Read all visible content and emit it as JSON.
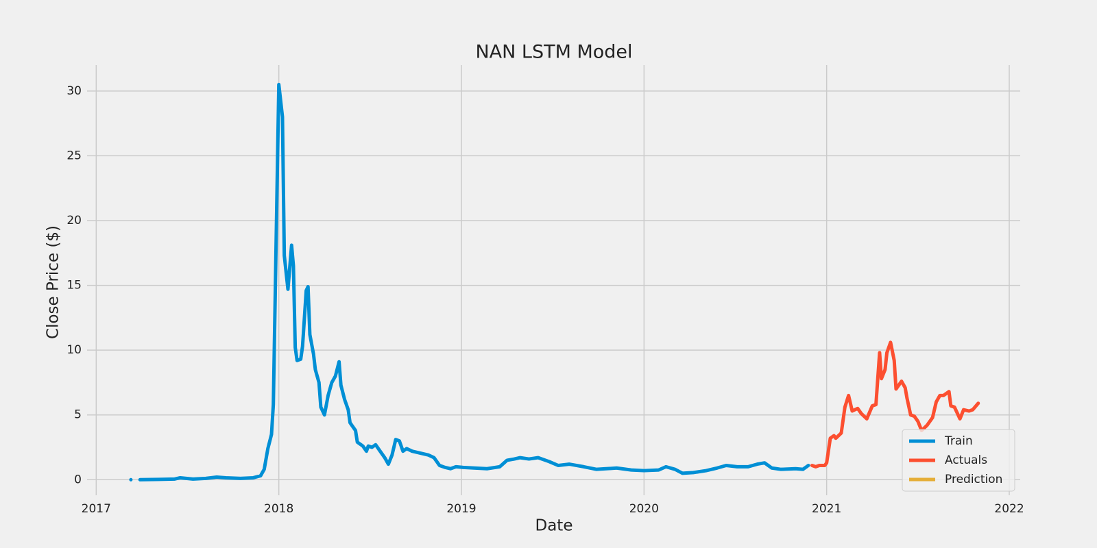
{
  "chart_data": {
    "type": "line",
    "title": "NAN LSTM Model",
    "x_label": "Date",
    "y_label": "Close Price ($)",
    "xlim": [
      2016.95,
      2022.06
    ],
    "xticks": [
      2017,
      2018,
      2019,
      2020,
      2021,
      2022
    ],
    "ylim": [
      -1.2,
      32
    ],
    "yticks": [
      0,
      5,
      10,
      15,
      20,
      25,
      30
    ],
    "grid": true,
    "legend": "lower right",
    "series": [
      {
        "name": "Train",
        "color": "#008fd5",
        "x": [
          2017.19,
          null,
          2017.24,
          2017.34,
          2017.43,
          2017.46,
          2017.53,
          2017.6,
          2017.66,
          2017.71,
          2017.79,
          2017.86,
          2017.9,
          2017.92,
          2017.94,
          2017.96,
          2017.97,
          2017.98,
          2018.0,
          2018.02,
          2018.03,
          2018.05,
          2018.07,
          2018.08,
          2018.09,
          2018.1,
          2018.12,
          2018.13,
          2018.15,
          2018.16,
          2018.17,
          2018.19,
          2018.2,
          2018.22,
          2018.23,
          2018.25,
          2018.27,
          2018.29,
          2018.31,
          2018.33,
          2018.34,
          2018.36,
          2018.38,
          2018.39,
          2018.41,
          2018.42,
          2018.43,
          2018.46,
          2018.48,
          2018.49,
          2018.51,
          2018.53,
          2018.55,
          2018.58,
          2018.6,
          2018.62,
          2018.64,
          2018.66,
          2018.68,
          2018.7,
          2018.73,
          2018.76,
          2018.79,
          2018.82,
          2018.85,
          2018.88,
          2018.91,
          2018.94,
          2018.97,
          2019.01,
          2019.07,
          2019.14,
          2019.21,
          2019.25,
          2019.29,
          2019.32,
          2019.37,
          2019.42,
          2019.48,
          2019.53,
          2019.59,
          2019.67,
          2019.74,
          2019.85,
          2019.93,
          2020.0,
          2020.08,
          2020.12,
          2020.17,
          2020.21,
          2020.27,
          2020.34,
          2020.4,
          2020.45,
          2020.51,
          2020.57,
          2020.62,
          2020.66,
          2020.7,
          2020.75,
          2020.83,
          2020.87,
          2020.9
        ],
        "values": [
          0,
          null,
          0,
          0.02,
          0.05,
          0.15,
          0.05,
          0.1,
          0.2,
          0.15,
          0.1,
          0.15,
          0.3,
          0.8,
          2.4,
          3.5,
          5.8,
          14,
          30.5,
          28,
          17.3,
          14.7,
          18.1,
          16.5,
          10.2,
          9.2,
          9.3,
          10.3,
          14.6,
          14.9,
          11.2,
          9.7,
          8.5,
          7.5,
          5.6,
          5.0,
          6.5,
          7.5,
          8.0,
          9.1,
          7.3,
          6.2,
          5.4,
          4.4,
          4.0,
          3.8,
          2.9,
          2.6,
          2.2,
          2.6,
          2.5,
          2.7,
          2.3,
          1.7,
          1.2,
          1.9,
          3.1,
          3.0,
          2.2,
          2.4,
          2.2,
          2.1,
          2.0,
          1.9,
          1.7,
          1.1,
          0.95,
          0.85,
          1.0,
          0.95,
          0.9,
          0.85,
          1.0,
          1.5,
          1.6,
          1.7,
          1.6,
          1.7,
          1.4,
          1.1,
          1.2,
          1.0,
          0.8,
          0.9,
          0.75,
          0.7,
          0.75,
          1.0,
          0.8,
          0.5,
          0.55,
          0.7,
          0.9,
          1.1,
          1.0,
          1.0,
          1.2,
          1.3,
          0.9,
          0.8,
          0.85,
          0.8,
          1.1
        ]
      },
      {
        "name": "Actuals",
        "color": "#fc4f30",
        "x": [
          2020.92,
          2020.94,
          2020.96,
          2020.99,
          2021.0,
          2021.02,
          2021.04,
          2021.05,
          2021.08,
          2021.1,
          2021.12,
          2021.14,
          2021.17,
          2021.19,
          2021.22,
          2021.25,
          2021.27,
          2021.29,
          2021.3,
          2021.32,
          2021.33,
          2021.35,
          2021.37,
          2021.38,
          2021.41,
          2021.43,
          2021.44,
          2021.46,
          2021.48,
          2021.5,
          2021.52,
          2021.55,
          2021.58,
          2021.6,
          2021.62,
          2021.64,
          2021.67,
          2021.68,
          2021.7,
          2021.73,
          2021.75,
          2021.78,
          2021.8,
          2021.83
        ],
        "values": [
          1.1,
          1.0,
          1.1,
          1.1,
          1.3,
          3.2,
          3.4,
          3.2,
          3.6,
          5.6,
          6.5,
          5.3,
          5.5,
          5.1,
          4.7,
          5.7,
          5.8,
          9.8,
          7.8,
          8.5,
          9.8,
          10.6,
          9.2,
          7.0,
          7.6,
          7.1,
          6.3,
          5.0,
          4.9,
          4.5,
          3.8,
          4.2,
          4.8,
          6.0,
          6.5,
          6.5,
          6.8,
          5.7,
          5.6,
          4.7,
          5.4,
          5.3,
          5.4,
          5.9
        ]
      },
      {
        "name": "Prediction",
        "color": "#e5ae38",
        "x": [],
        "values": []
      }
    ]
  }
}
